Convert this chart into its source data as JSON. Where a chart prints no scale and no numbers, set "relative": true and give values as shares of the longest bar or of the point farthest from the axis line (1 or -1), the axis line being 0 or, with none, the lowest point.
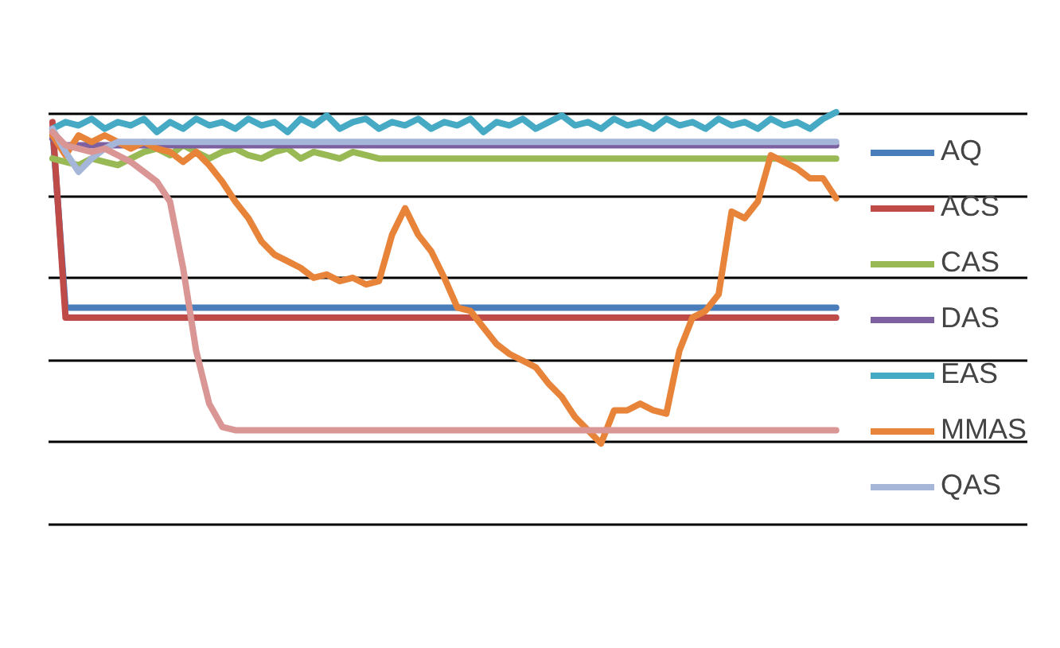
{
  "chart_data": {
    "type": "line",
    "relative": true,
    "grid": "y",
    "legend": "right",
    "categories": [
      null,
      null,
      null,
      null,
      null,
      null,
      null,
      null,
      null,
      null,
      null,
      null,
      null,
      null,
      null,
      null,
      null,
      null,
      null,
      null,
      null,
      null,
      null,
      null,
      null,
      null,
      null,
      null,
      null,
      null,
      null,
      null,
      null,
      null,
      null,
      null,
      null,
      null,
      null,
      null,
      null,
      null,
      null,
      null,
      null,
      null,
      null,
      null,
      null,
      null,
      null,
      null,
      null,
      null,
      null,
      null,
      null,
      null,
      null,
      null,
      null
    ],
    "series": [
      {
        "name": "AQ",
        "color": "#4a7ebb",
        "values": [
          0.95,
          0.41,
          0.41,
          0.41,
          0.41,
          0.41,
          0.41,
          0.41,
          0.41,
          0.41,
          0.41,
          0.41,
          0.41,
          0.41,
          0.41,
          0.41,
          0.41,
          0.41,
          0.41,
          0.41,
          0.41,
          0.41,
          0.41,
          0.41,
          0.41,
          0.41,
          0.41,
          0.41,
          0.41,
          0.41,
          0.41,
          0.41,
          0.41,
          0.41,
          0.41,
          0.41,
          0.41,
          0.41,
          0.41,
          0.41,
          0.41,
          0.41,
          0.41,
          0.41,
          0.41,
          0.41,
          0.41,
          0.41,
          0.41,
          0.41,
          0.41,
          0.41,
          0.41,
          0.41,
          0.41,
          0.41,
          0.41,
          0.41,
          0.41,
          0.41,
          0.41
        ]
      },
      {
        "name": "ACS",
        "color": "#be4b48",
        "values": [
          0.97,
          0.38,
          0.38,
          0.38,
          0.38,
          0.38,
          0.38,
          0.38,
          0.38,
          0.38,
          0.38,
          0.38,
          0.38,
          0.38,
          0.38,
          0.38,
          0.38,
          0.38,
          0.38,
          0.38,
          0.38,
          0.38,
          0.38,
          0.38,
          0.38,
          0.38,
          0.38,
          0.38,
          0.38,
          0.38,
          0.38,
          0.38,
          0.38,
          0.38,
          0.38,
          0.38,
          0.38,
          0.38,
          0.38,
          0.38,
          0.38,
          0.38,
          0.38,
          0.38,
          0.38,
          0.38,
          0.38,
          0.38,
          0.38,
          0.38,
          0.38,
          0.38,
          0.38,
          0.38,
          0.38,
          0.38,
          0.38,
          0.38,
          0.38,
          0.38,
          0.38
        ]
      },
      {
        "name": "CAS",
        "color": "#98b954",
        "values": [
          0.86,
          0.85,
          0.84,
          0.86,
          0.85,
          0.84,
          0.86,
          0.88,
          0.89,
          0.87,
          0.9,
          0.88,
          0.86,
          0.88,
          0.89,
          0.87,
          0.86,
          0.88,
          0.89,
          0.86,
          0.88,
          0.87,
          0.86,
          0.88,
          0.87,
          0.86,
          0.86,
          0.86,
          0.86,
          0.86,
          0.86,
          0.86,
          0.86,
          0.86,
          0.86,
          0.86,
          0.86,
          0.86,
          0.86,
          0.86,
          0.86,
          0.86,
          0.86,
          0.86,
          0.86,
          0.86,
          0.86,
          0.86,
          0.86,
          0.86,
          0.86,
          0.86,
          0.86,
          0.86,
          0.86,
          0.86,
          0.86,
          0.86,
          0.86,
          0.86,
          0.86
        ]
      },
      {
        "name": "DAS",
        "color": "#7d60a0",
        "values": [
          0.92,
          0.9,
          0.9,
          0.9,
          0.9,
          0.9,
          0.9,
          0.9,
          0.9,
          0.9,
          0.9,
          0.9,
          0.9,
          0.9,
          0.9,
          0.9,
          0.9,
          0.9,
          0.9,
          0.9,
          0.9,
          0.9,
          0.9,
          0.9,
          0.9,
          0.9,
          0.9,
          0.9,
          0.9,
          0.9,
          0.9,
          0.9,
          0.9,
          0.9,
          0.9,
          0.9,
          0.9,
          0.9,
          0.9,
          0.9,
          0.9,
          0.9,
          0.9,
          0.9,
          0.9,
          0.9,
          0.9,
          0.9,
          0.9,
          0.9,
          0.9,
          0.9,
          0.9,
          0.9,
          0.9,
          0.9,
          0.9,
          0.9,
          0.9,
          0.9,
          0.9
        ]
      },
      {
        "name": "EAS",
        "color": "#46aac5",
        "values": [
          0.95,
          0.97,
          0.96,
          0.98,
          0.95,
          0.97,
          0.96,
          0.98,
          0.94,
          0.97,
          0.95,
          0.98,
          0.96,
          0.97,
          0.95,
          0.98,
          0.96,
          0.97,
          0.94,
          0.98,
          0.96,
          0.99,
          0.95,
          0.97,
          0.98,
          0.95,
          0.97,
          0.96,
          0.98,
          0.95,
          0.97,
          0.96,
          0.98,
          0.94,
          0.97,
          0.96,
          0.98,
          0.95,
          0.97,
          0.99,
          0.96,
          0.97,
          0.95,
          0.98,
          0.96,
          0.97,
          0.95,
          0.98,
          0.96,
          0.97,
          0.95,
          0.98,
          0.96,
          0.97,
          0.95,
          0.98,
          0.96,
          0.97,
          0.95,
          0.98,
          1.0
        ]
      },
      {
        "name": "MMAS",
        "color": "#e8833a",
        "values": [
          0.93,
          0.87,
          0.93,
          0.91,
          0.93,
          0.91,
          0.89,
          0.91,
          0.89,
          0.88,
          0.85,
          0.88,
          0.84,
          0.79,
          0.73,
          0.68,
          0.61,
          0.57,
          0.55,
          0.53,
          0.5,
          0.51,
          0.49,
          0.5,
          0.48,
          0.49,
          0.63,
          0.71,
          0.63,
          0.58,
          0.5,
          0.41,
          0.4,
          0.35,
          0.3,
          0.27,
          0.25,
          0.23,
          0.18,
          0.14,
          0.08,
          0.04,
          0.0,
          0.1,
          0.1,
          0.12,
          0.1,
          0.09,
          0.28,
          0.38,
          0.4,
          0.45,
          0.7,
          0.68,
          0.73,
          0.87,
          0.85,
          0.83,
          0.8,
          0.8,
          0.74
        ]
      },
      {
        "name": "QAS",
        "color": "#a5b6d8",
        "values": [
          0.95,
          0.88,
          0.82,
          0.86,
          0.89,
          0.91,
          0.91,
          0.91,
          0.91,
          0.91,
          0.91,
          0.91,
          0.91,
          0.91,
          0.91,
          0.91,
          0.91,
          0.91,
          0.91,
          0.91,
          0.91,
          0.91,
          0.91,
          0.91,
          0.91,
          0.91,
          0.91,
          0.91,
          0.91,
          0.91,
          0.91,
          0.91,
          0.91,
          0.91,
          0.91,
          0.91,
          0.91,
          0.91,
          0.91,
          0.91,
          0.91,
          0.91,
          0.91,
          0.91,
          0.91,
          0.91,
          0.91,
          0.91,
          0.91,
          0.91,
          0.91,
          0.91,
          0.91,
          0.91,
          0.91,
          0.91,
          0.91,
          0.91,
          0.91,
          0.91,
          0.91
        ]
      },
      {
        "color": "#d99694",
        "values": [
          0.94,
          0.9,
          0.89,
          0.88,
          0.89,
          0.87,
          0.85,
          0.82,
          0.79,
          0.73,
          0.53,
          0.28,
          0.12,
          0.05,
          0.04,
          0.04,
          0.04,
          0.04,
          0.04,
          0.04,
          0.04,
          0.04,
          0.04,
          0.04,
          0.04,
          0.04,
          0.04,
          0.04,
          0.04,
          0.04,
          0.04,
          0.04,
          0.04,
          0.04,
          0.04,
          0.04,
          0.04,
          0.04,
          0.04,
          0.04,
          0.04,
          0.04,
          0.04,
          0.04,
          0.04,
          0.04,
          0.04,
          0.04,
          0.04,
          0.04,
          0.04,
          0.04,
          0.04,
          0.04,
          0.04,
          0.04,
          0.04,
          0.04,
          0.04,
          0.04,
          0.04
        ]
      }
    ]
  }
}
